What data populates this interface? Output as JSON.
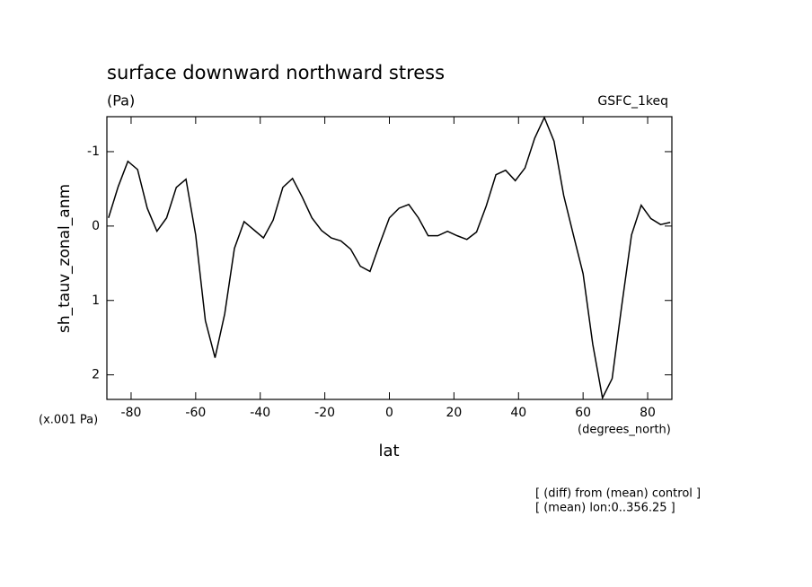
{
  "chart_data": {
    "type": "line",
    "title": "surface downward northward stress",
    "subtitle": "(Pa)",
    "model": "GSFC_1keq",
    "ylabel": "sh_tauv_zonal_anm",
    "yunits": "(x.001 Pa)",
    "xlabel": "lat",
    "xunits": "(degrees_north)",
    "notes": [
      "[ (diff) from (mean) control ]",
      "[ (mean) lon:0..356.25 ]"
    ],
    "xlim": [
      -87.5,
      87.5
    ],
    "xticks": [
      -80,
      -60,
      -40,
      -20,
      0,
      20,
      40,
      60,
      80
    ],
    "ylim": [
      -1.47,
      2.33
    ],
    "y_inverted": true,
    "yticks": [
      -1,
      0,
      1,
      2
    ],
    "x": [
      -87,
      -84,
      -81,
      -78,
      -75,
      -72,
      -69,
      -66,
      -63,
      -60,
      -57,
      -54,
      -51,
      -48,
      -45,
      -42,
      -39,
      -36,
      -33,
      -30,
      -27,
      -24,
      -21,
      -18,
      -15,
      -12,
      -9,
      -6,
      -3,
      0,
      3,
      6,
      9,
      12,
      15,
      18,
      21,
      24,
      27,
      30,
      33,
      36,
      39,
      42,
      45,
      48,
      51,
      54,
      57,
      60,
      63,
      66,
      69,
      72,
      75,
      78,
      81,
      84,
      87
    ],
    "series": [
      {
        "color": "#000000",
        "values": [
          -0.11,
          -0.53,
          -0.87,
          -0.76,
          -0.24,
          0.07,
          -0.11,
          -0.52,
          -0.63,
          0.12,
          1.27,
          1.77,
          1.18,
          0.3,
          -0.06,
          0.05,
          0.16,
          -0.08,
          -0.52,
          -0.64,
          -0.39,
          -0.11,
          0.06,
          0.16,
          0.2,
          0.31,
          0.54,
          0.61,
          0.24,
          -0.11,
          -0.24,
          -0.29,
          -0.11,
          0.13,
          0.13,
          0.07,
          0.13,
          0.18,
          0.08,
          -0.27,
          -0.69,
          -0.75,
          -0.61,
          -0.78,
          -1.18,
          -1.46,
          -1.14,
          -0.41,
          0.12,
          0.64,
          1.59,
          2.31,
          2.05,
          1.06,
          0.12,
          -0.28,
          -0.1,
          -0.02,
          -0.05
        ]
      }
    ]
  }
}
